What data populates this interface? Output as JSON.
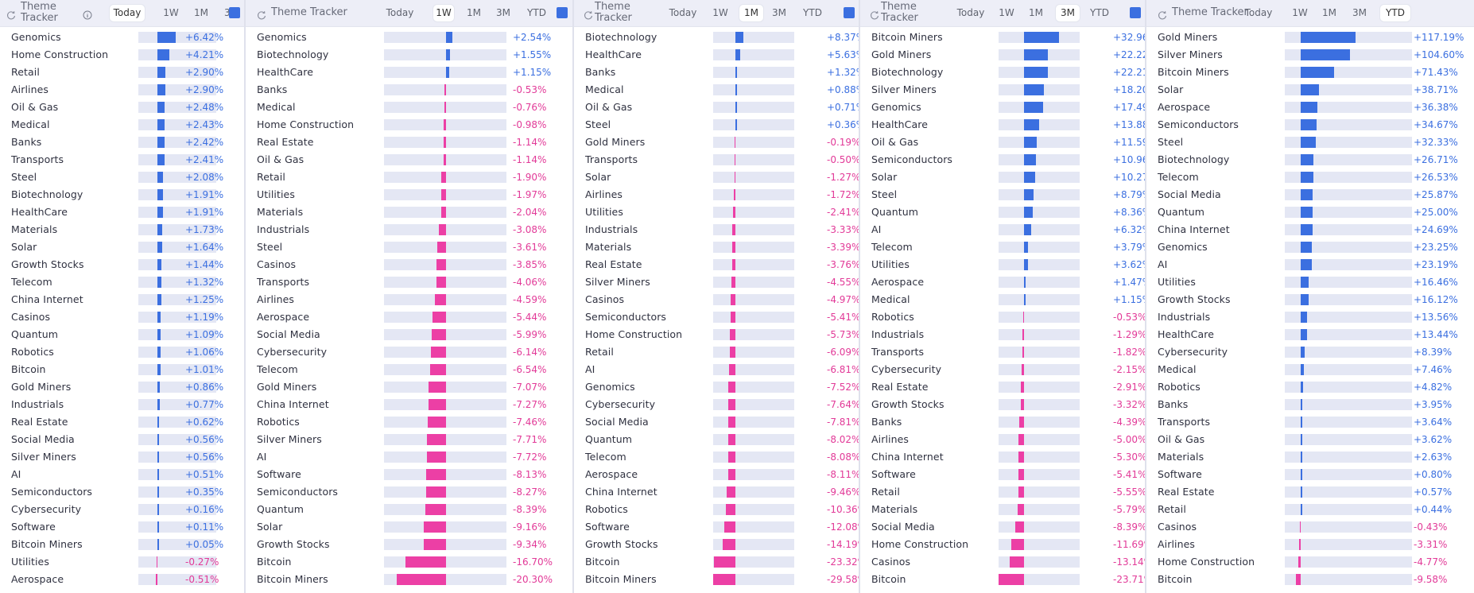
{
  "colors": {
    "positive": "#3b6fe0",
    "negative": "#ec3fa5",
    "track": "#e4e7f4",
    "header": "#edeef7"
  },
  "tab_labels": [
    "Today",
    "1W",
    "1M",
    "3M",
    "YTD"
  ],
  "panels": [
    {
      "title": "Theme Tracker",
      "active_tab": "Today",
      "icon": "info-icon",
      "rows": [
        {
          "name": "Genomics",
          "value": "+6.42%"
        },
        {
          "name": "Home Construction",
          "value": "+4.21%"
        },
        {
          "name": "Retail",
          "value": "+2.90%"
        },
        {
          "name": "Airlines",
          "value": "+2.90%"
        },
        {
          "name": "Oil & Gas",
          "value": "+2.48%"
        },
        {
          "name": "Medical",
          "value": "+2.43%"
        },
        {
          "name": "Banks",
          "value": "+2.42%"
        },
        {
          "name": "Transports",
          "value": "+2.41%"
        },
        {
          "name": "Steel",
          "value": "+2.08%"
        },
        {
          "name": "Biotechnology",
          "value": "+1.91%"
        },
        {
          "name": "HealthCare",
          "value": "+1.91%"
        },
        {
          "name": "Materials",
          "value": "+1.73%"
        },
        {
          "name": "Solar",
          "value": "+1.64%"
        },
        {
          "name": "Growth Stocks",
          "value": "+1.44%"
        },
        {
          "name": "Telecom",
          "value": "+1.32%"
        },
        {
          "name": "China Internet",
          "value": "+1.25%"
        },
        {
          "name": "Casinos",
          "value": "+1.19%"
        },
        {
          "name": "Quantum",
          "value": "+1.09%"
        },
        {
          "name": "Robotics",
          "value": "+1.06%"
        },
        {
          "name": "Bitcoin",
          "value": "+1.01%"
        },
        {
          "name": "Gold Miners",
          "value": "+0.86%"
        },
        {
          "name": "Industrials",
          "value": "+0.77%"
        },
        {
          "name": "Real Estate",
          "value": "+0.62%"
        },
        {
          "name": "Social Media",
          "value": "+0.56%"
        },
        {
          "name": "Silver Miners",
          "value": "+0.56%"
        },
        {
          "name": "AI",
          "value": "+0.51%"
        },
        {
          "name": "Semiconductors",
          "value": "+0.35%"
        },
        {
          "name": "Cybersecurity",
          "value": "+0.16%"
        },
        {
          "name": "Software",
          "value": "+0.11%"
        },
        {
          "name": "Bitcoin Miners",
          "value": "+0.05%"
        },
        {
          "name": "Utilities",
          "value": "-0.27%"
        },
        {
          "name": "Aerospace",
          "value": "-0.51%"
        }
      ]
    },
    {
      "title": "Theme Tracker",
      "active_tab": "1W",
      "icon": "refresh-icon",
      "rows": [
        {
          "name": "Genomics",
          "value": "+2.54%"
        },
        {
          "name": "Biotechnology",
          "value": "+1.55%"
        },
        {
          "name": "HealthCare",
          "value": "+1.15%"
        },
        {
          "name": "Banks",
          "value": "-0.53%"
        },
        {
          "name": "Medical",
          "value": "-0.76%"
        },
        {
          "name": "Home Construction",
          "value": "-0.98%"
        },
        {
          "name": "Real Estate",
          "value": "-1.14%"
        },
        {
          "name": "Oil & Gas",
          "value": "-1.14%"
        },
        {
          "name": "Retail",
          "value": "-1.90%"
        },
        {
          "name": "Utilities",
          "value": "-1.97%"
        },
        {
          "name": "Materials",
          "value": "-2.04%"
        },
        {
          "name": "Industrials",
          "value": "-3.08%"
        },
        {
          "name": "Steel",
          "value": "-3.61%"
        },
        {
          "name": "Casinos",
          "value": "-3.85%"
        },
        {
          "name": "Transports",
          "value": "-4.06%"
        },
        {
          "name": "Airlines",
          "value": "-4.59%"
        },
        {
          "name": "Aerospace",
          "value": "-5.44%"
        },
        {
          "name": "Social Media",
          "value": "-5.99%"
        },
        {
          "name": "Cybersecurity",
          "value": "-6.14%"
        },
        {
          "name": "Telecom",
          "value": "-6.54%"
        },
        {
          "name": "Gold Miners",
          "value": "-7.07%"
        },
        {
          "name": "China Internet",
          "value": "-7.27%"
        },
        {
          "name": "Robotics",
          "value": "-7.46%"
        },
        {
          "name": "Silver Miners",
          "value": "-7.71%"
        },
        {
          "name": "AI",
          "value": "-7.72%"
        },
        {
          "name": "Software",
          "value": "-8.13%"
        },
        {
          "name": "Semiconductors",
          "value": "-8.27%"
        },
        {
          "name": "Quantum",
          "value": "-8.39%"
        },
        {
          "name": "Solar",
          "value": "-9.16%"
        },
        {
          "name": "Growth Stocks",
          "value": "-9.34%"
        },
        {
          "name": "Bitcoin",
          "value": "-16.70%"
        },
        {
          "name": "Bitcoin Miners",
          "value": "-20.30%"
        }
      ]
    },
    {
      "title": "Theme Tracker",
      "active_tab": "1M",
      "icon": "refresh-icon",
      "rows": [
        {
          "name": "Biotechnology",
          "value": "+8.37%"
        },
        {
          "name": "HealthCare",
          "value": "+5.63%"
        },
        {
          "name": "Banks",
          "value": "+1.32%"
        },
        {
          "name": "Medical",
          "value": "+0.88%"
        },
        {
          "name": "Oil & Gas",
          "value": "+0.71%"
        },
        {
          "name": "Steel",
          "value": "+0.36%"
        },
        {
          "name": "Gold Miners",
          "value": "-0.19%"
        },
        {
          "name": "Transports",
          "value": "-0.50%"
        },
        {
          "name": "Solar",
          "value": "-1.27%"
        },
        {
          "name": "Airlines",
          "value": "-1.72%"
        },
        {
          "name": "Utilities",
          "value": "-2.41%"
        },
        {
          "name": "Industrials",
          "value": "-3.33%"
        },
        {
          "name": "Materials",
          "value": "-3.39%"
        },
        {
          "name": "Real Estate",
          "value": "-3.76%"
        },
        {
          "name": "Silver Miners",
          "value": "-4.55%"
        },
        {
          "name": "Casinos",
          "value": "-4.97%"
        },
        {
          "name": "Semiconductors",
          "value": "-5.41%"
        },
        {
          "name": "Home Construction",
          "value": "-5.73%"
        },
        {
          "name": "Retail",
          "value": "-6.09%"
        },
        {
          "name": "AI",
          "value": "-6.81%"
        },
        {
          "name": "Genomics",
          "value": "-7.52%"
        },
        {
          "name": "Cybersecurity",
          "value": "-7.64%"
        },
        {
          "name": "Social Media",
          "value": "-7.81%"
        },
        {
          "name": "Quantum",
          "value": "-8.02%"
        },
        {
          "name": "Telecom",
          "value": "-8.08%"
        },
        {
          "name": "Aerospace",
          "value": "-8.11%"
        },
        {
          "name": "China Internet",
          "value": "-9.46%"
        },
        {
          "name": "Robotics",
          "value": "-10.36%"
        },
        {
          "name": "Software",
          "value": "-12.08%"
        },
        {
          "name": "Growth Stocks",
          "value": "-14.19%"
        },
        {
          "name": "Bitcoin",
          "value": "-23.32%"
        },
        {
          "name": "Bitcoin Miners",
          "value": "-29.58%"
        }
      ]
    },
    {
      "title": "Theme Tracker",
      "active_tab": "3M",
      "icon": "refresh-icon",
      "rows": [
        {
          "name": "Bitcoin Miners",
          "value": "+32.96%"
        },
        {
          "name": "Gold Miners",
          "value": "+22.22%"
        },
        {
          "name": "Biotechnology",
          "value": "+22.21%"
        },
        {
          "name": "Silver Miners",
          "value": "+18.20%"
        },
        {
          "name": "Genomics",
          "value": "+17.49%"
        },
        {
          "name": "HealthCare",
          "value": "+13.88%"
        },
        {
          "name": "Oil & Gas",
          "value": "+11.59%"
        },
        {
          "name": "Semiconductors",
          "value": "+10.96%"
        },
        {
          "name": "Solar",
          "value": "+10.27%"
        },
        {
          "name": "Steel",
          "value": "+8.79%"
        },
        {
          "name": "Quantum",
          "value": "+8.36%"
        },
        {
          "name": "AI",
          "value": "+6.32%"
        },
        {
          "name": "Telecom",
          "value": "+3.79%"
        },
        {
          "name": "Utilities",
          "value": "+3.62%"
        },
        {
          "name": "Aerospace",
          "value": "+1.47%"
        },
        {
          "name": "Medical",
          "value": "+1.15%"
        },
        {
          "name": "Robotics",
          "value": "-0.53%"
        },
        {
          "name": "Industrials",
          "value": "-1.29%"
        },
        {
          "name": "Transports",
          "value": "-1.82%"
        },
        {
          "name": "Cybersecurity",
          "value": "-2.15%"
        },
        {
          "name": "Real Estate",
          "value": "-2.91%"
        },
        {
          "name": "Growth Stocks",
          "value": "-3.32%"
        },
        {
          "name": "Banks",
          "value": "-4.39%"
        },
        {
          "name": "Airlines",
          "value": "-5.00%"
        },
        {
          "name": "China Internet",
          "value": "-5.30%"
        },
        {
          "name": "Software",
          "value": "-5.41%"
        },
        {
          "name": "Retail",
          "value": "-5.55%"
        },
        {
          "name": "Materials",
          "value": "-5.79%"
        },
        {
          "name": "Social Media",
          "value": "-8.39%"
        },
        {
          "name": "Home Construction",
          "value": "-11.69%"
        },
        {
          "name": "Casinos",
          "value": "-13.14%"
        },
        {
          "name": "Bitcoin",
          "value": "-23.71%"
        }
      ]
    },
    {
      "title": "Theme Tracker",
      "active_tab": "YTD",
      "icon": "refresh-icon",
      "rows": [
        {
          "name": "Gold Miners",
          "value": "+117.19%"
        },
        {
          "name": "Silver Miners",
          "value": "+104.60%"
        },
        {
          "name": "Bitcoin Miners",
          "value": "+71.43%"
        },
        {
          "name": "Solar",
          "value": "+38.71%"
        },
        {
          "name": "Aerospace",
          "value": "+36.38%"
        },
        {
          "name": "Semiconductors",
          "value": "+34.67%"
        },
        {
          "name": "Steel",
          "value": "+32.33%"
        },
        {
          "name": "Biotechnology",
          "value": "+26.71%"
        },
        {
          "name": "Telecom",
          "value": "+26.53%"
        },
        {
          "name": "Social Media",
          "value": "+25.87%"
        },
        {
          "name": "Quantum",
          "value": "+25.00%"
        },
        {
          "name": "China Internet",
          "value": "+24.69%"
        },
        {
          "name": "Genomics",
          "value": "+23.25%"
        },
        {
          "name": "AI",
          "value": "+23.19%"
        },
        {
          "name": "Utilities",
          "value": "+16.46%"
        },
        {
          "name": "Growth Stocks",
          "value": "+16.12%"
        },
        {
          "name": "Industrials",
          "value": "+13.56%"
        },
        {
          "name": "HealthCare",
          "value": "+13.44%"
        },
        {
          "name": "Cybersecurity",
          "value": "+8.39%"
        },
        {
          "name": "Medical",
          "value": "+7.46%"
        },
        {
          "name": "Robotics",
          "value": "+4.82%"
        },
        {
          "name": "Banks",
          "value": "+3.95%"
        },
        {
          "name": "Transports",
          "value": "+3.64%"
        },
        {
          "name": "Oil & Gas",
          "value": "+3.62%"
        },
        {
          "name": "Materials",
          "value": "+2.63%"
        },
        {
          "name": "Software",
          "value": "+0.80%"
        },
        {
          "name": "Real Estate",
          "value": "+0.57%"
        },
        {
          "name": "Retail",
          "value": "+0.44%"
        },
        {
          "name": "Casinos",
          "value": "-0.43%"
        },
        {
          "name": "Airlines",
          "value": "-3.31%"
        },
        {
          "name": "Home Construction",
          "value": "-4.77%"
        },
        {
          "name": "Bitcoin",
          "value": "-9.58%"
        }
      ]
    }
  ]
}
